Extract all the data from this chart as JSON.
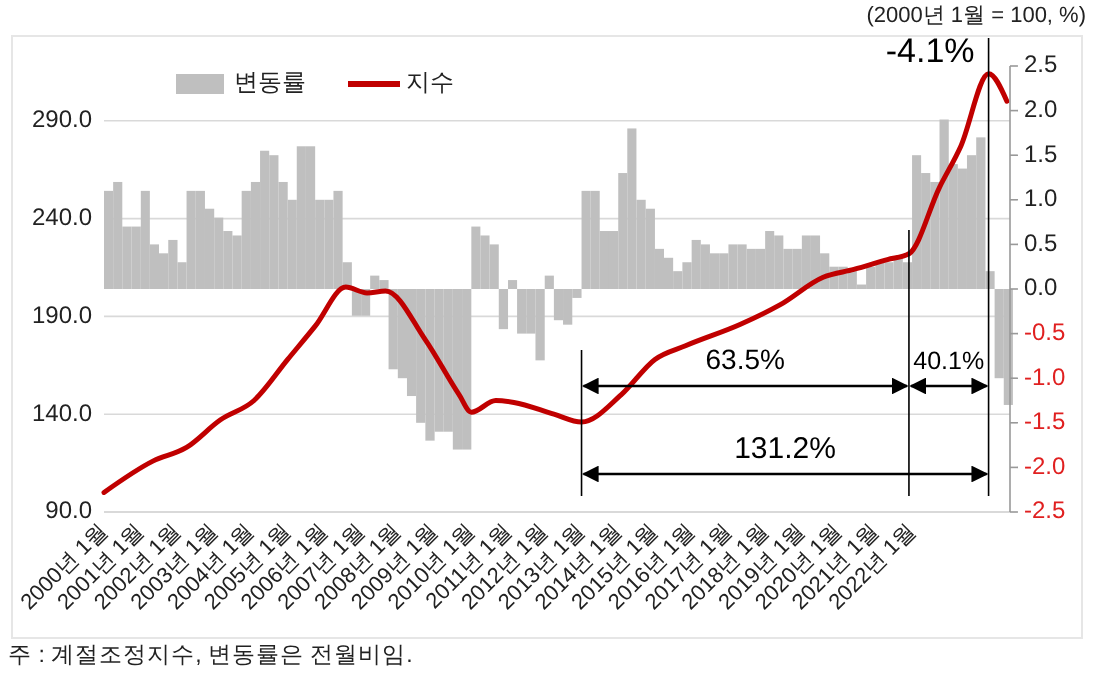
{
  "chart_data": {
    "type": "bar",
    "subtitle": "(2000년 1월 = 100, %)",
    "legend": "top left",
    "grid": "y",
    "xlim": [
      "2000-01",
      "2024-09"
    ],
    "xticks": [
      {
        "value": "2000-01",
        "label": "2000년 1월"
      },
      {
        "value": "2001-01",
        "label": "2001년 1월"
      },
      {
        "value": "2002-01",
        "label": "2002년 1월"
      },
      {
        "value": "2003-01",
        "label": "2003년 1월"
      },
      {
        "value": "2004-01",
        "label": "2004년 1월"
      },
      {
        "value": "2005-01",
        "label": "2005년 1월"
      },
      {
        "value": "2006-01",
        "label": "2006년 1월"
      },
      {
        "value": "2007-01",
        "label": "2007년 1월"
      },
      {
        "value": "2008-01",
        "label": "2008년 1월"
      },
      {
        "value": "2009-01",
        "label": "2009년 1월"
      },
      {
        "value": "2010-01",
        "label": "2010년 1월"
      },
      {
        "value": "2011-01",
        "label": "2011년 1월"
      },
      {
        "value": "2012-01",
        "label": "2012년 1월"
      },
      {
        "value": "2013-01",
        "label": "2013년 1월"
      },
      {
        "value": "2014-01",
        "label": "2014년 1월"
      },
      {
        "value": "2015-01",
        "label": "2015년 1월"
      },
      {
        "value": "2016-01",
        "label": "2016년 1월"
      },
      {
        "value": "2017-01",
        "label": "2017년 1월"
      },
      {
        "value": "2018-01",
        "label": "2018년 1월"
      },
      {
        "value": "2019-01",
        "label": "2019년 1월"
      },
      {
        "value": "2020-01",
        "label": "2020년 1월"
      },
      {
        "value": "2021-01",
        "label": "2021년 1월"
      },
      {
        "value": "2022-01",
        "label": "2022년 1월"
      }
    ],
    "ylim": [
      90,
      318
    ],
    "yticks": [
      {
        "value": 90,
        "label": "90.0"
      },
      {
        "value": 140,
        "label": "140.0"
      },
      {
        "value": 190,
        "label": "190.0"
      },
      {
        "value": 240,
        "label": "240.0"
      },
      {
        "value": 290,
        "label": "290.0"
      }
    ],
    "y2lim": [
      -2.5,
      2.5
    ],
    "y2ticks": [
      {
        "value": 2.5,
        "label": "2.5"
      },
      {
        "value": 2,
        "label": "2.0"
      },
      {
        "value": 1.5,
        "label": "1.5"
      },
      {
        "value": 1,
        "label": "1.0"
      },
      {
        "value": 0.5,
        "label": "0.5"
      },
      {
        "value": 0,
        "label": "0.0"
      },
      {
        "value": -0.5,
        "label": "-0.5"
      },
      {
        "value": -1,
        "label": "-1.0"
      },
      {
        "value": -1.5,
        "label": "-1.5"
      },
      {
        "value": -2,
        "label": "-2.0"
      },
      {
        "value": -2.5,
        "label": "-2.5"
      }
    ],
    "ref_lines": [
      {
        "axis": "x",
        "value": "2013-01"
      },
      {
        "axis": "x",
        "value": "2021-12"
      },
      {
        "axis": "x",
        "value": "2024-02"
      }
    ],
    "annotations": [
      {
        "text": "-4.1%",
        "x": "2024-02",
        "y": 314
      },
      "63.5%",
      "40.1%",
      "131.2%",
      "주 : 계절조정지수, 변동률은 전월비임."
    ],
    "series": [
      {
        "name": "변동률",
        "axis": "y2",
        "color": "#bfbfbf",
        "x": [
          "2000-01",
          "2000-04",
          "2000-07",
          "2000-10",
          "2001-01",
          "2001-04",
          "2001-07",
          "2001-10",
          "2002-01",
          "2002-04",
          "2002-07",
          "2002-10",
          "2003-01",
          "2003-04",
          "2003-07",
          "2003-10",
          "2004-01",
          "2004-04",
          "2004-07",
          "2004-10",
          "2005-01",
          "2005-04",
          "2005-07",
          "2005-10",
          "2006-01",
          "2006-04",
          "2006-07",
          "2006-10",
          "2007-01",
          "2007-04",
          "2007-07",
          "2007-10",
          "2008-01",
          "2008-04",
          "2008-07",
          "2008-10",
          "2009-01",
          "2009-04",
          "2009-07",
          "2009-10",
          "2010-01",
          "2010-04",
          "2010-07",
          "2010-10",
          "2011-01",
          "2011-04",
          "2011-07",
          "2011-10",
          "2012-01",
          "2012-04",
          "2012-07",
          "2012-10",
          "2013-01",
          "2013-04",
          "2013-07",
          "2013-10",
          "2014-01",
          "2014-04",
          "2014-07",
          "2014-10",
          "2015-01",
          "2015-04",
          "2015-07",
          "2015-10",
          "2016-01",
          "2016-04",
          "2016-07",
          "2016-10",
          "2017-01",
          "2017-04",
          "2017-07",
          "2017-10",
          "2018-01",
          "2018-04",
          "2018-07",
          "2018-10",
          "2019-01",
          "2019-04",
          "2019-07",
          "2019-10",
          "2020-01",
          "2020-04",
          "2020-07",
          "2020-10",
          "2021-01",
          "2021-04",
          "2021-07",
          "2021-10",
          "2022-01",
          "2022-04",
          "2022-07",
          "2022-10",
          "2023-01",
          "2023-04",
          "2023-07",
          "2023-10",
          "2024-01",
          "2024-04",
          "2024-07"
        ],
        "values": [
          1.1,
          1.2,
          0.7,
          0.7,
          1.1,
          0.5,
          0.4,
          0.55,
          0.3,
          1.1,
          1.1,
          0.9,
          0.8,
          0.65,
          0.6,
          1.1,
          1.2,
          1.55,
          1.5,
          1.2,
          1.0,
          1.6,
          1.6,
          1.0,
          1.0,
          1.1,
          0.3,
          -0.3,
          -0.3,
          0.15,
          0.1,
          -0.9,
          -1.0,
          -1.2,
          -1.5,
          -1.7,
          -1.6,
          -1.6,
          -1.8,
          -1.8,
          0.7,
          0.6,
          0.5,
          -0.45,
          0.1,
          -0.5,
          -0.5,
          -0.8,
          0.15,
          -0.35,
          -0.4,
          -0.1,
          1.1,
          1.1,
          0.65,
          0.65,
          1.3,
          1.8,
          1.0,
          0.9,
          0.45,
          0.35,
          0.2,
          0.3,
          0.55,
          0.5,
          0.4,
          0.4,
          0.5,
          0.5,
          0.45,
          0.45,
          0.65,
          0.6,
          0.45,
          0.45,
          0.6,
          0.6,
          0.4,
          0.25,
          0.25,
          0.2,
          0.05,
          0.25,
          0.3,
          0.3,
          0.35,
          0.3,
          1.5,
          1.3,
          1.2,
          1.9,
          1.4,
          1.35,
          1.5,
          1.7,
          0.2,
          -1.0,
          -1.3
        ]
      },
      {
        "name": "지수",
        "type": "line",
        "color": "#c00000",
        "x": [
          "2000-01",
          "2001-05",
          "2002-04",
          "2003-03",
          "2004-02",
          "2005-01",
          "2005-10",
          "2006-08",
          "2007-03",
          "2007-09",
          "2008-10",
          "2009-09",
          "2010-01",
          "2010-09",
          "2011-03",
          "2012-04",
          "2013-01",
          "2014-02",
          "2015-01",
          "2015-11",
          "2017-05",
          "2018-06",
          "2019-08",
          "2020-06",
          "2021-05",
          "2021-12",
          "2022-10",
          "2023-05",
          "2024-02",
          "2024-08"
        ],
        "values": [
          100,
          116,
          123,
          137,
          147,
          168,
          185,
          205,
          202,
          203,
          178,
          150,
          141,
          147,
          146,
          140,
          136,
          150,
          168,
          175,
          186,
          196,
          210,
          214,
          219,
          222,
          256,
          277,
          314,
          300
        ]
      }
    ]
  }
}
